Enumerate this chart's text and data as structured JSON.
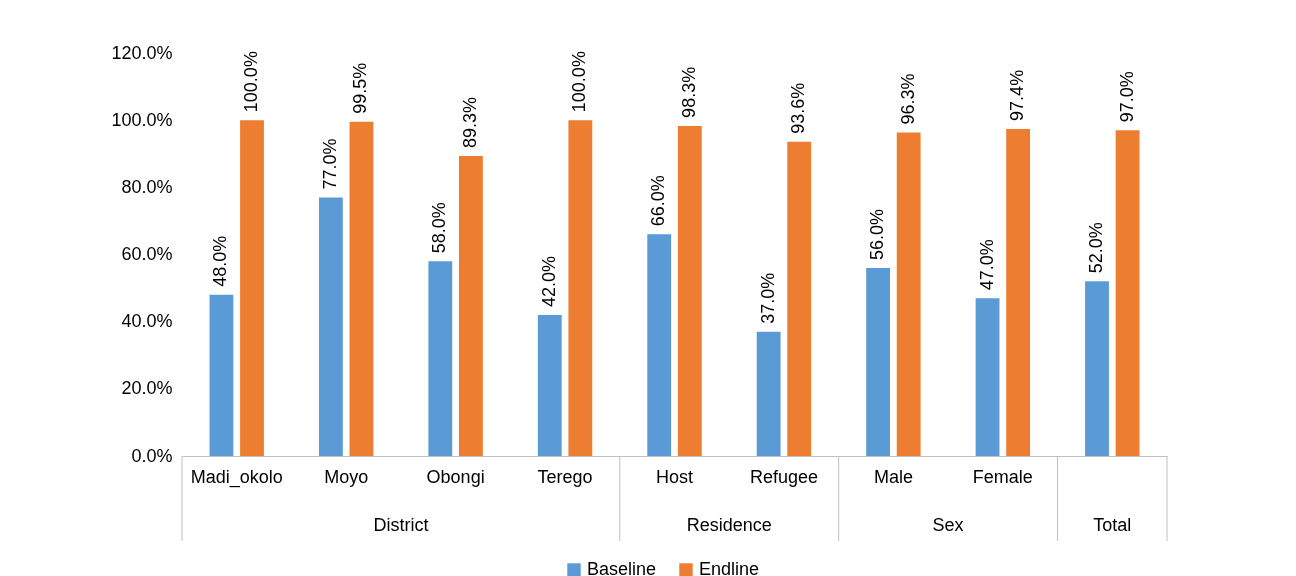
{
  "chart_data": {
    "type": "bar",
    "categories": [
      "Madi_okolo",
      "Moyo",
      "Obongi",
      "Terego",
      "Host",
      "Refugee",
      "Male",
      "Female",
      null
    ],
    "series": [
      {
        "name": "Baseline",
        "color": "#5b9bd5",
        "values": [
          48.0,
          77.0,
          58.0,
          42.0,
          66.0,
          37.0,
          56.0,
          47.0,
          52.0
        ],
        "value_labels": [
          "48.0%",
          "77.0%",
          "58.0%",
          "42.0%",
          "66.0%",
          "37.0%",
          "56.0%",
          "47.0%",
          "52.0%"
        ]
      },
      {
        "name": "Endline",
        "color": "#ed7d31",
        "values": [
          100.0,
          99.5,
          89.3,
          100.0,
          98.3,
          93.6,
          96.3,
          97.4,
          97.0
        ],
        "value_labels": [
          "100.0%",
          "99.5%",
          "89.3%",
          "100.0%",
          "98.3%",
          "93.6%",
          "96.3%",
          "97.4%",
          "97.0%"
        ]
      }
    ],
    "ylim": [
      0,
      120
    ],
    "yticks": [
      {
        "value": 0,
        "label": "0.0%"
      },
      {
        "value": 20,
        "label": "20.0%"
      },
      {
        "value": 40,
        "label": "40.0%"
      },
      {
        "value": 60,
        "label": "60.0%"
      },
      {
        "value": 80,
        "label": "80.0%"
      },
      {
        "value": 100,
        "label": "100.0%"
      },
      {
        "value": 120,
        "label": "120.0%"
      }
    ],
    "annotations": [
      "District",
      "Residence",
      "Sex",
      "Total"
    ],
    "grid": false,
    "legend": "bottom"
  }
}
